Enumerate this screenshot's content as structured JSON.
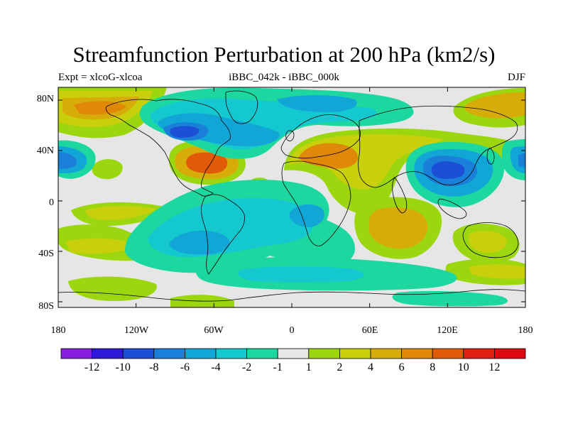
{
  "title": "Streamfunction Perturbation at 200 hPa (km2/s)",
  "subtitle_left": "Expt = xlcoG-xlcoa",
  "subtitle_center": "iBBC_042k - iBBC_000k",
  "subtitle_right": "DJF",
  "lat_ticks": [
    "80N",
    "40N",
    "0",
    "40S",
    "80S"
  ],
  "lon_ticks": [
    "180",
    "120W",
    "60W",
    "0",
    "60E",
    "120E",
    "180"
  ],
  "colorbar": {
    "labels": [
      "-12",
      "-10",
      "-8",
      "-6",
      "-4",
      "-2",
      "-1",
      "1",
      "2",
      "4",
      "6",
      "8",
      "10",
      "12"
    ],
    "colors": [
      "#8a1ee0",
      "#3018d8",
      "#1a4fd6",
      "#1a7fd8",
      "#11a6d6",
      "#14c8d0",
      "#1cd8a0",
      "#e6e6e6",
      "#9bd60f",
      "#c8d00c",
      "#d8ac08",
      "#e08808",
      "#e05a08",
      "#e02010",
      "#e00810"
    ]
  },
  "colors": {
    "background": "#e6e6e6",
    "coast": "#000000"
  }
}
